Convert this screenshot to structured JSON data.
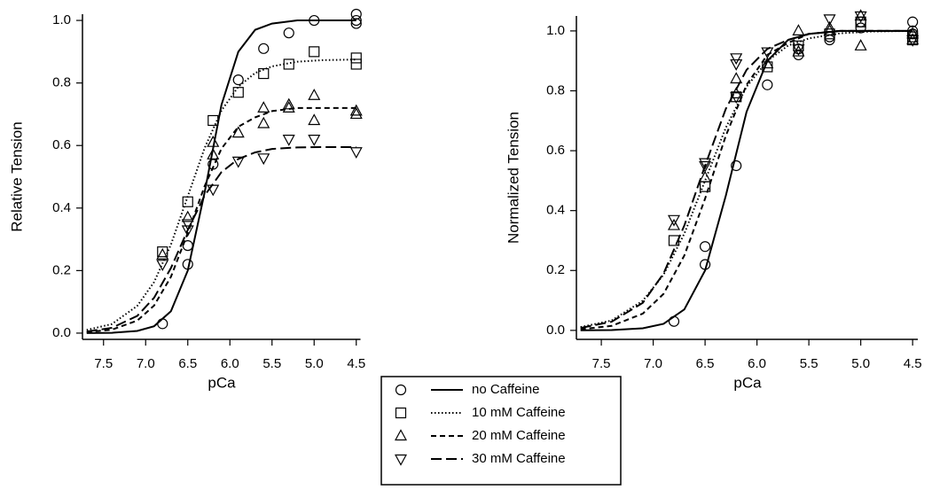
{
  "chart_data": [
    {
      "type": "scatter-fit",
      "x_label": "pCa",
      "y_label": "Relative Tension",
      "xlim": [
        7.75,
        4.45
      ],
      "ylim": [
        -0.02,
        1.02
      ],
      "xticks": [
        7.5,
        {
          "value": 7.0,
          "label": "7.0"
        },
        6.5,
        {
          "value": 6.0,
          "label": "6.0"
        },
        5.5,
        {
          "value": 5.0,
          "label": "5.0"
        },
        4.5
      ],
      "yticks": [
        {
          "value": 0.0,
          "label": "0.0"
        },
        0.2,
        0.4,
        0.6,
        0.8,
        {
          "value": 1.0,
          "label": "1.0"
        }
      ],
      "fit_x": [
        7.7,
        7.4,
        7.1,
        6.9,
        6.7,
        6.5,
        6.3,
        6.1,
        5.9,
        5.7,
        5.5,
        5.2,
        4.9,
        4.5
      ],
      "series": [
        {
          "name": "no Caffeine",
          "color": "#000000",
          "marker": "circle",
          "line_style": "solid",
          "x": [
            6.8,
            6.5,
            6.5,
            6.2,
            5.9,
            5.6,
            5.3,
            5.0,
            4.5,
            4.5,
            4.5
          ],
          "y": [
            0.03,
            0.28,
            0.22,
            0.54,
            0.81,
            0.91,
            0.96,
            1.0,
            1.02,
            0.99,
            1.0
          ],
          "fit_y": [
            0.0002,
            0.001,
            0.007,
            0.022,
            0.07,
            0.2,
            0.45,
            0.73,
            0.9,
            0.97,
            0.99,
            1.0,
            1.0,
            1.0
          ]
        },
        {
          "name": "10 mM Caffeine",
          "color": "#000000",
          "marker": "square",
          "line_style": "dotted",
          "x": [
            6.8,
            6.5,
            6.2,
            5.9,
            5.6,
            5.3,
            5.0,
            4.5,
            4.5
          ],
          "y": [
            0.26,
            0.42,
            0.68,
            0.77,
            0.83,
            0.86,
            0.9,
            0.88,
            0.86
          ],
          "fit_y": [
            0.01,
            0.029,
            0.087,
            0.163,
            0.283,
            0.4375,
            0.592,
            0.712,
            0.788,
            0.832,
            0.853,
            0.868,
            0.873,
            0.875
          ]
        },
        {
          "name": "20 mM Caffeine",
          "color": "#000000",
          "marker": "triangle-up",
          "line_style": "dashed",
          "x": [
            6.8,
            6.5,
            6.2,
            6.2,
            5.9,
            5.6,
            5.6,
            5.3,
            5.3,
            5.0,
            5.0,
            4.5,
            4.5
          ],
          "y": [
            0.25,
            0.37,
            0.61,
            0.57,
            0.64,
            0.72,
            0.67,
            0.73,
            0.72,
            0.76,
            0.68,
            0.71,
            0.7
          ],
          "fit_y": [
            0.003,
            0.011,
            0.04,
            0.088,
            0.18,
            0.32,
            0.47,
            0.59,
            0.66,
            0.69,
            0.71,
            0.72,
            0.72,
            0.72
          ]
        },
        {
          "name": "30 mM Caffeine",
          "color": "#000000",
          "marker": "triangle-down",
          "line_style": "long-dash",
          "x": [
            6.8,
            6.5,
            6.5,
            6.2,
            5.9,
            5.6,
            5.3,
            5.0,
            4.5
          ],
          "y": [
            0.22,
            0.33,
            0.35,
            0.46,
            0.55,
            0.56,
            0.62,
            0.62,
            0.58
          ],
          "fit_y": [
            0.005,
            0.017,
            0.055,
            0.113,
            0.208,
            0.33,
            0.44,
            0.515,
            0.557,
            0.578,
            0.589,
            0.594,
            0.595,
            0.595
          ]
        }
      ]
    },
    {
      "type": "scatter-fit",
      "x_label": "pCa",
      "y_label": "Normalized Tension",
      "xlim": [
        7.74,
        4.45
      ],
      "ylim": [
        -0.03,
        1.05
      ],
      "xticks": [
        7.5,
        {
          "value": 7.0,
          "label": "7.0"
        },
        6.5,
        {
          "value": 6.0,
          "label": "6.0"
        },
        5.5,
        {
          "value": 5.0,
          "label": "5.0"
        },
        4.5
      ],
      "yticks": [
        {
          "value": 0.0,
          "label": "0.0"
        },
        0.2,
        0.4,
        0.6,
        0.8,
        {
          "value": 1.0,
          "label": "1.0"
        }
      ],
      "fit_x": [
        7.7,
        7.4,
        7.1,
        6.9,
        6.7,
        6.5,
        6.3,
        6.1,
        5.9,
        5.7,
        5.5,
        5.2,
        4.9,
        4.5
      ],
      "series": [
        {
          "color": "#000000",
          "marker": "circle",
          "line_style": "solid",
          "x": [
            6.8,
            6.5,
            6.5,
            6.2,
            5.9,
            5.6,
            5.6,
            5.3,
            5.3,
            5.0,
            5.0,
            4.5,
            4.5,
            4.5
          ],
          "y": [
            0.03,
            0.28,
            0.22,
            0.55,
            0.82,
            0.94,
            0.92,
            0.97,
            0.98,
            1.01,
            1.03,
            1.03,
            1.0,
            0.99
          ],
          "fit_y": [
            0.0002,
            0.001,
            0.007,
            0.022,
            0.07,
            0.2,
            0.45,
            0.73,
            0.9,
            0.97,
            0.99,
            1.0,
            1.0,
            1.0
          ]
        },
        {
          "color": "#000000",
          "marker": "square",
          "line_style": "dotted",
          "x": [
            6.8,
            6.5,
            6.2,
            5.9,
            5.6,
            5.3,
            5.0,
            4.5,
            4.5
          ],
          "y": [
            0.3,
            0.48,
            0.78,
            0.88,
            0.95,
            0.99,
            1.03,
            0.98,
            0.97
          ],
          "fit_y": [
            0.011,
            0.033,
            0.099,
            0.186,
            0.323,
            0.5,
            0.677,
            0.814,
            0.9,
            0.951,
            0.975,
            0.992,
            0.998,
            1.0
          ]
        },
        {
          "color": "#000000",
          "marker": "triangle-up",
          "line_style": "dashed",
          "x": [
            6.8,
            6.5,
            6.2,
            6.2,
            5.9,
            5.6,
            5.6,
            5.3,
            5.3,
            5.0,
            5.0,
            4.5,
            4.5
          ],
          "y": [
            0.35,
            0.51,
            0.84,
            0.79,
            0.89,
            1.0,
            0.93,
            1.01,
            1.0,
            1.05,
            0.95,
            0.99,
            0.97
          ],
          "fit_y": [
            0.004,
            0.015,
            0.056,
            0.122,
            0.25,
            0.44,
            0.65,
            0.82,
            0.92,
            0.96,
            0.99,
            1.0,
            1.0,
            1.0
          ]
        },
        {
          "color": "#000000",
          "marker": "triangle-down",
          "line_style": "long-dash",
          "x": [
            6.8,
            6.5,
            6.5,
            6.2,
            6.2,
            6.2,
            5.9,
            5.6,
            5.3,
            5.0,
            4.5
          ],
          "y": [
            0.37,
            0.55,
            0.56,
            0.78,
            0.91,
            0.89,
            0.93,
            0.94,
            1.04,
            1.05,
            0.97
          ],
          "fit_y": [
            0.008,
            0.029,
            0.092,
            0.19,
            0.35,
            0.55,
            0.74,
            0.87,
            0.94,
            0.97,
            0.99,
            1.0,
            1.0,
            1.0
          ]
        }
      ]
    }
  ]
}
